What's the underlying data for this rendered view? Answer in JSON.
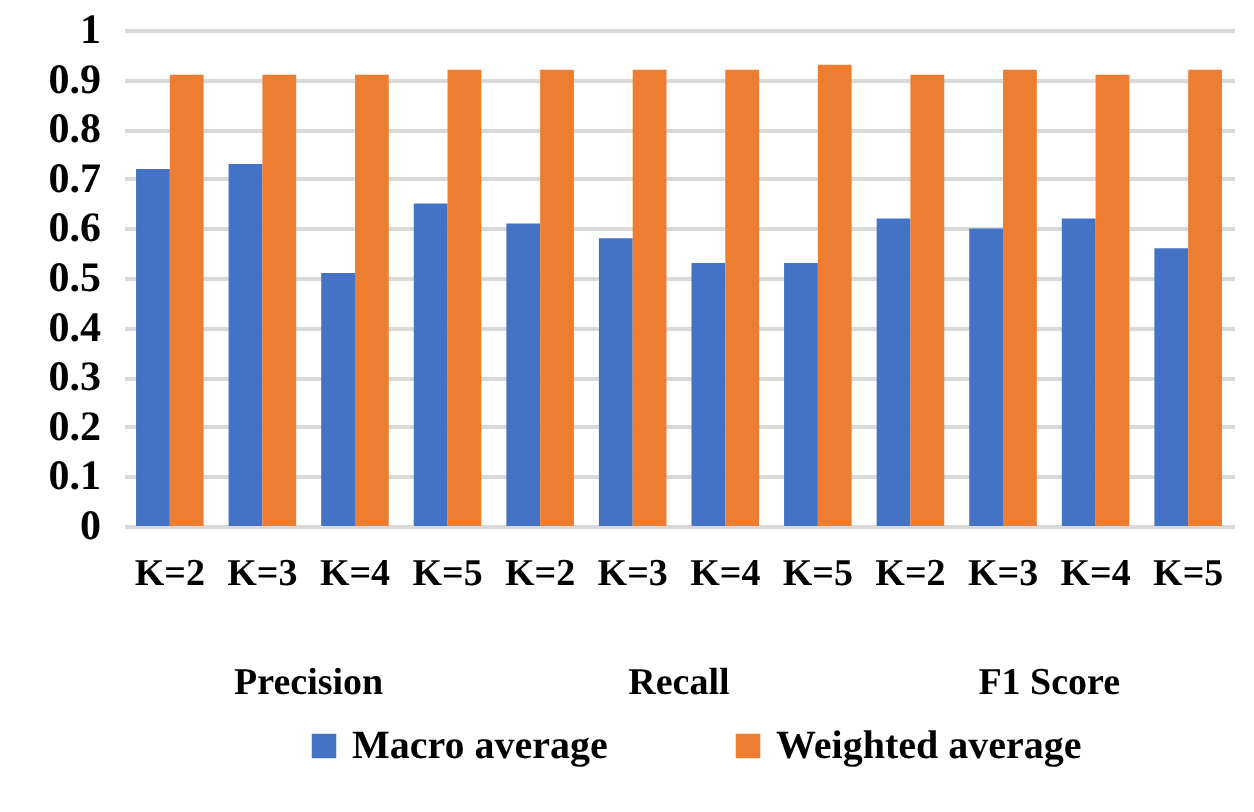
{
  "chart_data": {
    "type": "bar",
    "categories": [
      "K=2",
      "K=3",
      "K=4",
      "K=5",
      "K=2",
      "K=3",
      "K=4",
      "K=5",
      "K=2",
      "K=3",
      "K=4",
      "K=5"
    ],
    "series": [
      {
        "name": "Macro average",
        "color": "#4472c4",
        "values": [
          0.72,
          0.73,
          0.51,
          0.65,
          0.61,
          0.58,
          0.53,
          0.53,
          0.62,
          0.6,
          0.62,
          0.56
        ]
      },
      {
        "name": "Weighted average",
        "color": "#ed7d31",
        "values": [
          0.91,
          0.91,
          0.91,
          0.92,
          0.92,
          0.92,
          0.92,
          0.93,
          0.91,
          0.92,
          0.91,
          0.92
        ]
      }
    ],
    "annotations": [
      "Precision",
      "Recall",
      "F1 Score"
    ],
    "ylim": [
      0,
      1
    ],
    "yticks": [
      0,
      0.1,
      0.2,
      0.3,
      0.4,
      0.5,
      0.6,
      0.7,
      0.8,
      0.9,
      1
    ],
    "grid": "y",
    "legend": "bottom"
  }
}
